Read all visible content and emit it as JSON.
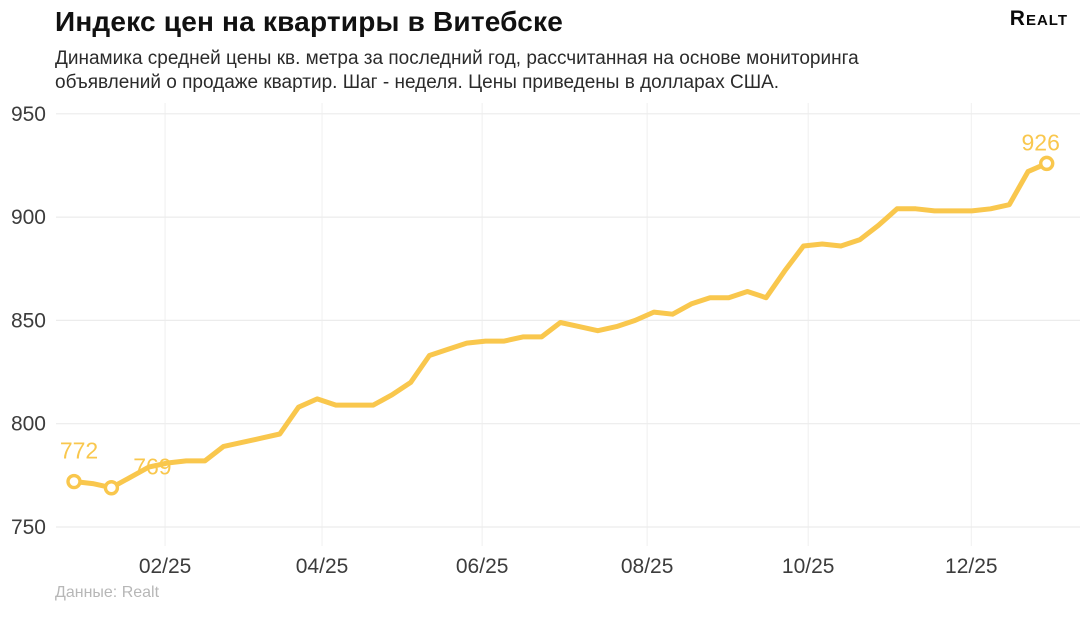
{
  "header": {
    "title": "Индекс цен на квартиры в Витебске",
    "subtitle_lines": [
      "Динамика средней цены кв. метра за последний год, рассчитанная на основе мониторинга",
      "объявлений о продаже квартир. Шаг - неделя. Цены приведены в долларах США."
    ],
    "logo_text": "Realt"
  },
  "footer": {
    "source": "Данные: Realt"
  },
  "chart_data": {
    "type": "line",
    "title": "Индекс цен на квартиры в Витебске",
    "xlabel": "",
    "ylabel": "",
    "step": "week",
    "grid": true,
    "legend": false,
    "ylim": [
      740,
      955
    ],
    "y_ticks": [
      750,
      800,
      850,
      900,
      950
    ],
    "x_ticks": [
      {
        "label": "02/25",
        "week": 4.87
      },
      {
        "label": "04/25",
        "week": 13.26
      },
      {
        "label": "06/25",
        "week": 21.82
      },
      {
        "label": "08/25",
        "week": 30.64
      },
      {
        "label": "10/25",
        "week": 39.25
      },
      {
        "label": "12/25",
        "week": 47.97
      }
    ],
    "values": [
      772,
      771,
      769,
      774,
      779,
      781,
      782,
      782,
      789,
      791,
      793,
      795,
      808,
      812,
      809,
      809,
      809,
      814,
      820,
      833,
      836,
      839,
      840,
      840,
      842,
      842,
      849,
      847,
      845,
      847,
      850,
      854,
      853,
      858,
      861,
      861,
      864,
      861,
      874,
      886,
      887,
      886,
      889,
      896,
      904,
      904,
      903,
      903,
      903,
      904,
      906,
      922,
      926
    ],
    "labeled_points": [
      {
        "index": 0,
        "value": 772
      },
      {
        "index": 2,
        "value": 769
      },
      {
        "index": 52,
        "value": 926
      }
    ],
    "colors": {
      "line": "#f9c74d",
      "marker_fill": "#ffffff",
      "axis_text": "#3c3c3c",
      "grid_horizontal": "#ececec",
      "grid_vertical": "#f2f2f2"
    }
  }
}
